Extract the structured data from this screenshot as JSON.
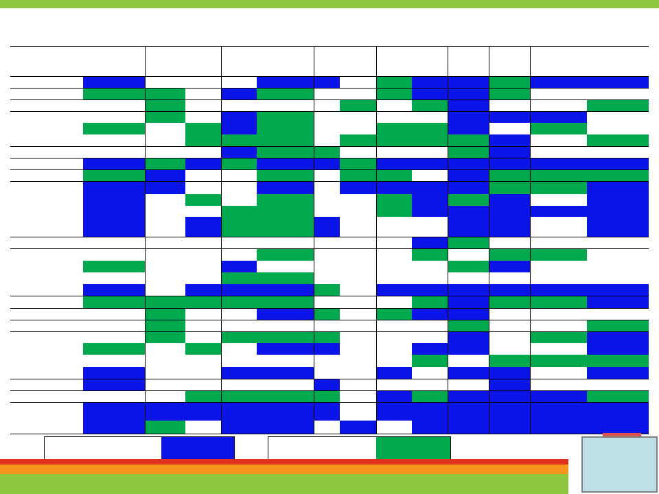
{
  "slide": {
    "title": "",
    "colors": {
      "blue": "#0a14e6",
      "green": "#00a84e",
      "accent_green": "#8dc63f",
      "accent_orange": "#f7941d",
      "accent_red": "#e0301e"
    }
  },
  "table": {
    "rows": [
      [
        "B",
        "W",
        "W",
        "W",
        "B",
        "B",
        "W",
        "G",
        "B",
        "B",
        "G",
        "B",
        "B"
      ],
      [
        "G",
        "G",
        "W",
        "B",
        "G",
        "W",
        "W",
        "G",
        "B",
        "B",
        "G",
        "W",
        "W"
      ],
      [
        "W",
        "G",
        "W",
        "W",
        "W",
        "W",
        "G",
        "W",
        "G",
        "B",
        "W",
        "W",
        "G"
      ],
      [
        "W",
        "G",
        "W",
        "B",
        "G",
        "W",
        "W",
        "W",
        "W",
        "B",
        "B",
        "B",
        "W"
      ],
      [
        "G",
        "W",
        "G",
        "B",
        "G",
        "W",
        "W",
        "G",
        "G",
        "B",
        "W",
        "G",
        "W"
      ],
      [
        "W",
        "W",
        "G",
        "G",
        "G",
        "W",
        "G",
        "G",
        "G",
        "G",
        "B",
        "W",
        "G"
      ],
      [
        "W",
        "W",
        "W",
        "B",
        "G",
        "G",
        "W",
        "W",
        "W",
        "G",
        "B",
        "W",
        "W"
      ],
      [
        "B",
        "G",
        "B",
        "G",
        "B",
        "B",
        "G",
        "B",
        "B",
        "B",
        "B",
        "B",
        "B"
      ],
      [
        "G",
        "B",
        "W",
        "W",
        "G",
        "W",
        "G",
        "G",
        "W",
        "B",
        "G",
        "G",
        "G"
      ],
      [
        "B",
        "B",
        "W",
        "W",
        "B",
        "W",
        "B",
        "B",
        "B",
        "B",
        "G",
        "G",
        "B"
      ],
      [
        "B",
        "W",
        "G",
        "W",
        "G",
        "W",
        "W",
        "G",
        "B",
        "G",
        "B",
        "W",
        "B"
      ],
      [
        "B",
        "W",
        "W",
        "G",
        "G",
        "W",
        "W",
        "G",
        "B",
        "B",
        "B",
        "B",
        "B"
      ],
      [
        "B",
        "W",
        "B",
        "G",
        "G",
        "B",
        "W",
        "W",
        "W",
        "B",
        "B",
        "W",
        "B"
      ],
      [
        "W",
        "W",
        "W",
        "W",
        "W",
        "W",
        "W",
        "W",
        "B",
        "G",
        "W",
        "W",
        "W"
      ],
      [
        "W",
        "W",
        "W",
        "W",
        "G",
        "W",
        "W",
        "W",
        "G",
        "W",
        "G",
        "G",
        "W"
      ],
      [
        "G",
        "W",
        "W",
        "B",
        "W",
        "W",
        "W",
        "W",
        "W",
        "G",
        "B",
        "W",
        "W"
      ],
      [
        "W",
        "W",
        "W",
        "G",
        "G",
        "W",
        "W",
        "W",
        "W",
        "W",
        "W",
        "W",
        "W"
      ],
      [
        "B",
        "W",
        "B",
        "B",
        "B",
        "G",
        "W",
        "B",
        "B",
        "B",
        "B",
        "B",
        "B"
      ],
      [
        "G",
        "G",
        "G",
        "G",
        "G",
        "W",
        "W",
        "W",
        "G",
        "B",
        "G",
        "G",
        "B"
      ],
      [
        "W",
        "G",
        "W",
        "W",
        "B",
        "G",
        "W",
        "G",
        "B",
        "B",
        "W",
        "W",
        "W"
      ],
      [
        "W",
        "G",
        "W",
        "W",
        "W",
        "W",
        "W",
        "W",
        "W",
        "G",
        "W",
        "W",
        "G"
      ],
      [
        "W",
        "G",
        "W",
        "G",
        "G",
        "G",
        "W",
        "W",
        "W",
        "B",
        "W",
        "G",
        "B"
      ],
      [
        "G",
        "W",
        "G",
        "W",
        "B",
        "B",
        "W",
        "W",
        "B",
        "B",
        "W",
        "W",
        "B"
      ],
      [
        "W",
        "W",
        "W",
        "W",
        "W",
        "W",
        "W",
        "W",
        "G",
        "W",
        "G",
        "G",
        "G"
      ],
      [
        "B",
        "W",
        "W",
        "B",
        "B",
        "W",
        "W",
        "B",
        "W",
        "B",
        "B",
        "W",
        "B"
      ],
      [
        "B",
        "W",
        "W",
        "W",
        "W",
        "B",
        "W",
        "W",
        "W",
        "W",
        "B",
        "W",
        "W"
      ],
      [
        "W",
        "W",
        "G",
        "G",
        "G",
        "G",
        "W",
        "B",
        "G",
        "B",
        "B",
        "B",
        "G"
      ],
      [
        "B",
        "B",
        "B",
        "B",
        "B",
        "B",
        "W",
        "B",
        "B",
        "B",
        "B",
        "B",
        "B"
      ],
      [
        "B",
        "G",
        "W",
        "B",
        "B",
        "W",
        "B",
        "W",
        "B",
        "B",
        "B",
        "B",
        "B"
      ]
    ]
  },
  "legend": {
    "item1_label": "",
    "item1_color": "#0a14e6",
    "item2_label": "",
    "item2_color": "#00a84e"
  },
  "corner_widget": {
    "label": ""
  }
}
